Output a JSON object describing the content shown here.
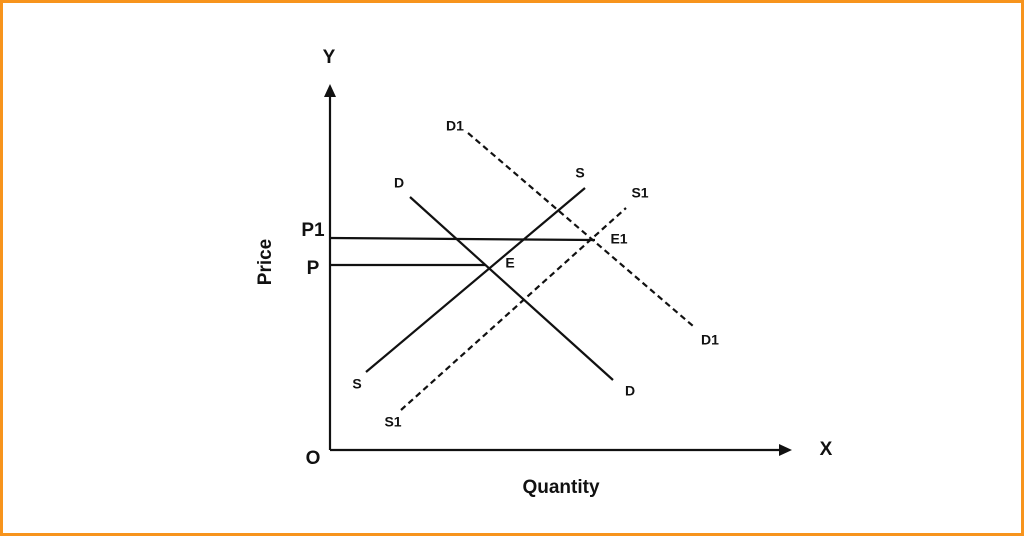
{
  "axes": {
    "y_axis": "Y",
    "x_axis": "X",
    "origin": "O",
    "y_title": "Price",
    "x_title": "Quantity"
  },
  "price_levels": [
    {
      "label": "P1"
    },
    {
      "label": "P"
    }
  ],
  "equilibria": [
    {
      "label": "E"
    },
    {
      "label": "E1"
    }
  ],
  "curves": [
    {
      "start_label": "D",
      "end_label": "D"
    },
    {
      "start_label": "S",
      "end_label": "S"
    },
    {
      "start_label": "D1",
      "end_label": "D1"
    },
    {
      "start_label": "S1",
      "end_label": "S1"
    }
  ]
}
